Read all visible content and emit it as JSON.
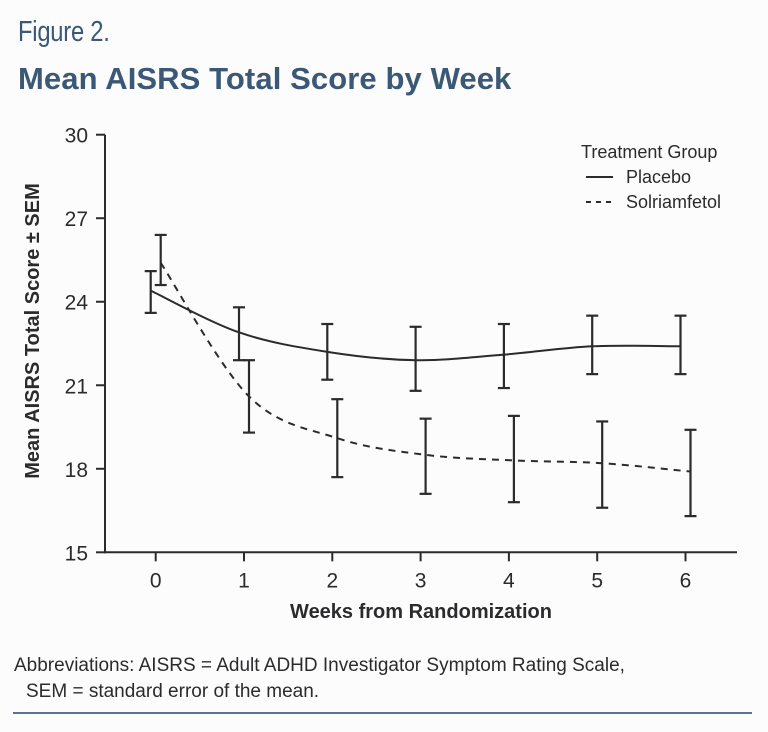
{
  "figure": {
    "label": "Figure 2.",
    "title": "Mean AISRS Total Score by Week",
    "title_color": "#3b5876"
  },
  "footnote": {
    "line1": "Abbreviations: AISRS = Adult ADHD Investigator Symptom Rating Scale,",
    "line2": "SEM = standard error of the mean."
  },
  "chart_data": {
    "type": "line",
    "title": "Mean AISRS Total Score by Week",
    "xlabel": "Weeks from Randomization",
    "ylabel": "Mean AISRS Total Score ± SEM",
    "x": [
      0,
      1,
      2,
      3,
      4,
      5,
      6
    ],
    "x_ticks": [
      "0",
      "1",
      "2",
      "3",
      "4",
      "5",
      "6"
    ],
    "y_ticks": [
      "15",
      "18",
      "21",
      "24",
      "27",
      "30"
    ],
    "xlim": [
      -0.5,
      6.5
    ],
    "ylim": [
      15,
      30
    ],
    "grid": false,
    "legend": {
      "title": "Treatment Group",
      "position": "top-right"
    },
    "error_bars": "SEM",
    "series": [
      {
        "name": "Placebo",
        "line_style": "solid",
        "color": "#2b2b2e",
        "values": [
          24.4,
          22.9,
          22.2,
          21.9,
          22.1,
          22.4,
          22.4
        ],
        "error_low": [
          23.6,
          21.9,
          21.2,
          20.8,
          20.9,
          21.4,
          21.4
        ],
        "error_high": [
          25.1,
          23.8,
          23.2,
          23.1,
          23.2,
          23.5,
          23.5
        ]
      },
      {
        "name": "Solriamfetol",
        "line_style": "dashed",
        "color": "#2b2b2e",
        "values": [
          25.4,
          20.6,
          19.1,
          18.5,
          18.3,
          18.2,
          17.9
        ],
        "error_low": [
          24.6,
          19.3,
          17.7,
          17.1,
          16.8,
          16.6,
          16.3
        ],
        "error_high": [
          26.4,
          21.9,
          20.5,
          19.8,
          19.9,
          19.7,
          19.4
        ]
      }
    ]
  }
}
